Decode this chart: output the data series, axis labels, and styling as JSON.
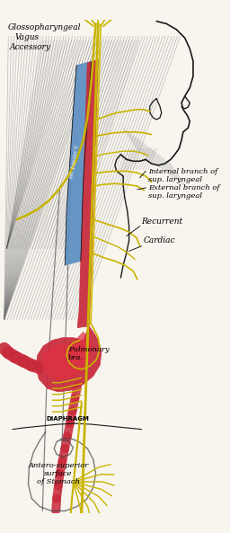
{
  "background_color": "#f8f5ef",
  "labels": {
    "glossopharyngeal": "Glossopharyngeal",
    "vagus": "Vagus",
    "accessory": "Accessory",
    "internal_branch": "Internal branch of\nsup. laryngeal",
    "external_branch": "External branch of\nsup. laryngeal",
    "recurrent": "Recurrent",
    "cardiac": "Cardiac",
    "pulmonary": "Pulmonary\nbra.",
    "diaphragm": "DIAPHRAGM",
    "stomach": "Antero-superior\nsurface\nof Stomach"
  },
  "colors": {
    "blue_vessel": "#5b8ec2",
    "red_vessel": "#c8293a",
    "red_bright": "#e03040",
    "yellow_nerve": "#c8b400",
    "yellow2": "#d4c020",
    "black_line": "#1a1a1a",
    "gray_dark": "#444444",
    "gray_mid": "#777777",
    "gray_light": "#aaaaaa",
    "gray_muscle": "#888888",
    "white": "#ffffff",
    "cream": "#f8f5ef"
  },
  "figsize": [
    2.56,
    5.93
  ],
  "dpi": 100
}
